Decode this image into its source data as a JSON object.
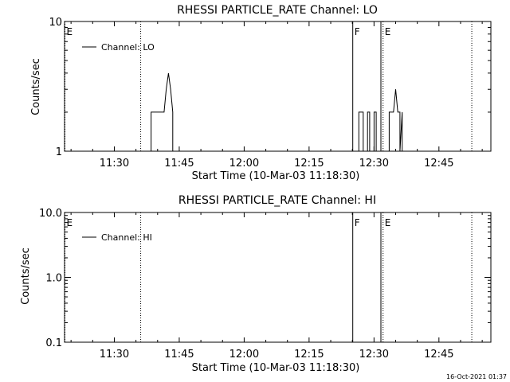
{
  "chart_data": [
    {
      "type": "line",
      "title": "RHESSI PARTICLE_RATE Channel: LO",
      "xlabel": "Start Time (10-Mar-03 11:18:30)",
      "ylabel": "Counts/sec",
      "y_scale": "log",
      "ylim": [
        1,
        10
      ],
      "y_ticks": [
        {
          "value": 1,
          "label": "1"
        },
        {
          "value": 10,
          "label": "10"
        }
      ],
      "xlim": [
        "11:18:30",
        "12:57:00"
      ],
      "x_ticks": [
        "11:30",
        "11:45",
        "12:00",
        "12:15",
        "12:30",
        "12:45"
      ],
      "x_tick_minutes": [
        690,
        705,
        720,
        735,
        750,
        765
      ],
      "grid": false,
      "legend": {
        "entries": [
          "Channel: LO"
        ],
        "position": "top-left"
      },
      "series": [
        {
          "name": "Channel: LO",
          "segments": [
            {
              "x": [
                "11:38:30",
                "11:38:30",
                "11:41:30",
                "11:41:30",
                "11:42:00",
                "11:42:30",
                "11:43:00",
                "11:43:30",
                "11:43:30"
              ],
              "y": [
                1,
                2,
                2,
                2,
                3,
                4,
                3,
                2,
                1
              ]
            },
            {
              "x": [
                "12:26:30",
                "12:26:30",
                "12:27:30",
                "12:27:30",
                "12:28:30",
                "12:28:30",
                "12:29:00",
                "12:29:00",
                "12:30:00",
                "12:30:00",
                "12:30:30",
                "12:30:30"
              ],
              "y": [
                1,
                2,
                2,
                1,
                1,
                2,
                2,
                1,
                1,
                2,
                2,
                1
              ]
            },
            {
              "x": [
                "12:33:30",
                "12:33:30",
                "12:34:30",
                "12:35:00",
                "12:35:30",
                "12:36:00",
                "12:36:00",
                "12:36:30",
                "12:36:30"
              ],
              "y": [
                1,
                2,
                2,
                3,
                2,
                2,
                1,
                2,
                1
              ]
            }
          ]
        }
      ],
      "markers": [
        {
          "time": "11:18:30",
          "label": "E",
          "style": "dotted"
        },
        {
          "time": "11:36:00",
          "label": "",
          "style": "dotted"
        },
        {
          "time": "12:25:00",
          "label": "F",
          "style": "solid"
        },
        {
          "time": "12:31:30",
          "label": "",
          "style": "solid"
        },
        {
          "time": "12:32:00",
          "label": "E",
          "style": "dotted"
        },
        {
          "time": "12:52:30",
          "label": "",
          "style": "dotted"
        }
      ]
    },
    {
      "type": "line",
      "title": "RHESSI PARTICLE_RATE Channel: HI",
      "xlabel": "Start Time (10-Mar-03 11:18:30)",
      "ylabel": "Counts/sec",
      "y_scale": "log",
      "ylim": [
        0.1,
        10
      ],
      "y_ticks": [
        {
          "value": 0.1,
          "label": "0.1"
        },
        {
          "value": 1,
          "label": "1.0"
        },
        {
          "value": 10,
          "label": "10.0"
        }
      ],
      "xlim": [
        "11:18:30",
        "12:57:00"
      ],
      "x_ticks": [
        "11:30",
        "11:45",
        "12:00",
        "12:15",
        "12:30",
        "12:45"
      ],
      "x_tick_minutes": [
        690,
        705,
        720,
        735,
        750,
        765
      ],
      "grid": false,
      "legend": {
        "entries": [
          "Channel: HI"
        ],
        "position": "top-left"
      },
      "series": [
        {
          "name": "Channel: HI",
          "segments": []
        }
      ],
      "markers": [
        {
          "time": "11:18:30",
          "label": "E",
          "style": "dotted"
        },
        {
          "time": "11:36:00",
          "label": "",
          "style": "dotted"
        },
        {
          "time": "12:25:00",
          "label": "F",
          "style": "solid"
        },
        {
          "time": "12:31:30",
          "label": "",
          "style": "solid"
        },
        {
          "time": "12:32:00",
          "label": "E",
          "style": "dotted"
        },
        {
          "time": "12:52:30",
          "label": "",
          "style": "dotted"
        }
      ]
    }
  ],
  "timestamp": "16-Oct-2021 01:37"
}
